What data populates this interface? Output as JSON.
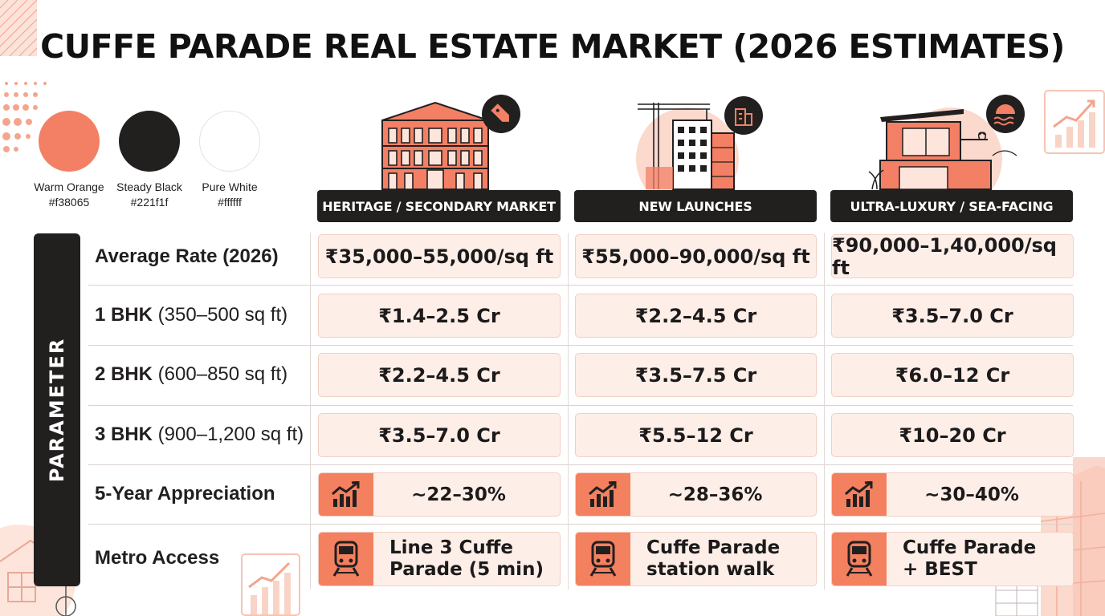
{
  "title": "CUFFE PARADE REAL ESTATE MARKET (2026 ESTIMATES)",
  "palette": [
    {
      "name": "Warm Orange",
      "hex": "#f38065",
      "label_hex": "#f38065"
    },
    {
      "name": "Steady Black",
      "hex": "#221f1f",
      "label_hex": "#221f1f"
    },
    {
      "name": "Pure White",
      "hex": "#ffffff",
      "label_hex": "#ffffff"
    }
  ],
  "parameter_label": "PARAMETER",
  "columns": [
    {
      "header": "HERITAGE / SECONDARY MARKET",
      "illustration": "heritage-building-icon",
      "badge_icon": "price-tag-icon"
    },
    {
      "header": "NEW LAUNCHES",
      "illustration": "construction-tower-icon",
      "badge_icon": "building-icon"
    },
    {
      "header": "ULTRA-LUXURY / SEA-FACING",
      "illustration": "luxury-villa-icon",
      "badge_icon": "sea-waves-icon"
    }
  ],
  "rows": {
    "average_rate": {
      "label_bold": "Average Rate (2026)",
      "label_rest": "",
      "values": [
        "₹35,000–55,000/sq ft",
        "₹55,000–90,000/sq ft",
        "₹90,000–1,40,000/sq ft"
      ]
    },
    "bhk1": {
      "label_bold": "1 BHK",
      "label_rest": " (350–500 sq ft)",
      "values": [
        "₹1.4–2.5 Cr",
        "₹2.2–4.5 Cr",
        "₹3.5–7.0 Cr"
      ]
    },
    "bhk2": {
      "label_bold": "2 BHK",
      "label_rest": " (600–850 sq ft)",
      "values": [
        "₹2.2–4.5 Cr",
        "₹3.5–7.5 Cr",
        "₹6.0–12 Cr"
      ]
    },
    "bhk3": {
      "label_bold": "3 BHK",
      "label_rest": " (900–1,200 sq ft)",
      "values": [
        "₹3.5–7.0 Cr",
        "₹5.5–12 Cr",
        "₹10–20 Cr"
      ]
    },
    "appreciation": {
      "label_bold": "5-Year Appreciation",
      "label_rest": "",
      "icon": "growth-chart-icon",
      "values": [
        "~22–30%",
        "~28–36%",
        "~30–40%"
      ]
    },
    "metro": {
      "label_bold": "Metro Access",
      "label_rest": "",
      "icon": "metro-train-icon",
      "values": [
        [
          "Line 3 Cuffe",
          "Parade (5 min)"
        ],
        [
          "Cuffe Parade",
          "station walk"
        ],
        [
          "Cuffe Parade",
          "+ BEST"
        ]
      ]
    }
  }
}
